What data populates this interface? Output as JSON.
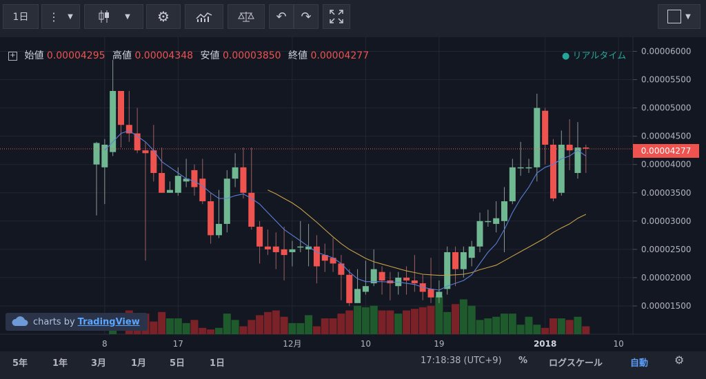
{
  "toolbar": {
    "interval_label": "1日"
  },
  "legend": {
    "open_label": "始値",
    "open_value": "0.00004295",
    "high_label": "高値",
    "high_value": "0.00004348",
    "low_label": "安値",
    "low_value": "0.00003850",
    "close_label": "終値",
    "close_value": "0.00004277",
    "realtime": "リアルタイム"
  },
  "branding": {
    "prefix": "charts by",
    "name": "TradingView"
  },
  "current_price_label": "0.00004277",
  "bottom_bar": {
    "ranges": [
      "5年",
      "1年",
      "3月",
      "1月",
      "5日",
      "1日"
    ],
    "time": "17:18:38 (UTC+9)",
    "percent": "%",
    "log_scale": "ログスケール",
    "auto": "自動"
  },
  "colors": {
    "up": "#6fb892",
    "down": "#ef5350",
    "bg": "#131722",
    "ma_fast": "#5b7fd6",
    "ma_slow": "#c8a04a"
  },
  "chart_data": {
    "type": "candlestick",
    "y_ticks": [
      "0.00006000",
      "0.00005500",
      "0.00005000",
      "0.00004500",
      "0.00004000",
      "0.00003500",
      "0.00003000",
      "0.00002500",
      "0.00002000",
      "0.00001500"
    ],
    "y_tick_values": [
      6.0,
      5.5,
      5.0,
      4.5,
      4.0,
      3.5,
      3.0,
      2.5,
      2.0,
      1.5
    ],
    "y_unit_scale": "1e-5",
    "x_ticks": [
      {
        "label": "8",
        "i": 1
      },
      {
        "label": "17",
        "i": 10
      },
      {
        "label": "12月",
        "i": 24
      },
      {
        "label": "10",
        "i": 33
      },
      {
        "label": "19",
        "i": 42
      },
      {
        "label": "2018",
        "i": 55
      },
      {
        "label": "10",
        "i": 64
      }
    ],
    "candles": [
      [
        4.0,
        4.38,
        4.4,
        3.1
      ],
      [
        3.95,
        4.35,
        4.45,
        3.3
      ],
      [
        4.22,
        5.3,
        5.85,
        4.15
      ],
      [
        5.3,
        4.7,
        5.3,
        4.3
      ],
      [
        4.7,
        4.55,
        5.3,
        4.4
      ],
      [
        4.55,
        4.25,
        5.0,
        4.2
      ],
      [
        4.25,
        4.2,
        4.4,
        2.3
      ],
      [
        4.25,
        3.85,
        4.7,
        3.7
      ],
      [
        3.85,
        3.5,
        4.3,
        3.5
      ],
      [
        3.5,
        3.55,
        3.7,
        3.5
      ],
      [
        3.5,
        3.8,
        3.95,
        3.45
      ],
      [
        3.7,
        3.75,
        4.1,
        3.6
      ],
      [
        3.9,
        3.6,
        4.0,
        3.45
      ],
      [
        3.75,
        3.35,
        4.1,
        3.3
      ],
      [
        3.35,
        2.75,
        3.5,
        2.6
      ],
      [
        2.75,
        2.95,
        3.55,
        2.7
      ],
      [
        2.95,
        3.75,
        3.9,
        2.8
      ],
      [
        3.75,
        3.95,
        4.2,
        3.6
      ],
      [
        3.95,
        3.5,
        4.3,
        3.4
      ],
      [
        3.5,
        2.9,
        4.3,
        2.85
      ],
      [
        2.9,
        2.55,
        3.0,
        2.25
      ],
      [
        2.55,
        2.5,
        2.85,
        2.4
      ],
      [
        2.55,
        2.45,
        2.8,
        2.15
      ],
      [
        2.5,
        2.4,
        2.9,
        1.95
      ],
      [
        2.45,
        2.5,
        2.65,
        2.2
      ],
      [
        2.55,
        2.55,
        3.0,
        2.45
      ],
      [
        2.5,
        2.55,
        2.95,
        2.2
      ],
      [
        2.55,
        2.2,
        2.75,
        1.9
      ],
      [
        2.4,
        2.3,
        2.6,
        2.1
      ],
      [
        2.35,
        2.25,
        2.7,
        2.1
      ],
      [
        2.25,
        2.05,
        2.4,
        1.6
      ],
      [
        2.05,
        1.55,
        2.15,
        1.5
      ],
      [
        1.55,
        1.8,
        2.15,
        1.55
      ],
      [
        1.75,
        1.85,
        2.3,
        1.7
      ],
      [
        1.9,
        2.15,
        2.5,
        1.85
      ],
      [
        2.1,
        1.95,
        2.2,
        1.7
      ],
      [
        1.95,
        1.9,
        2.1,
        1.6
      ],
      [
        1.85,
        2.0,
        2.1,
        1.7
      ],
      [
        2.0,
        1.95,
        2.2,
        1.7
      ],
      [
        1.95,
        1.9,
        2.4,
        1.75
      ],
      [
        1.9,
        1.75,
        2.05,
        1.6
      ],
      [
        1.8,
        1.65,
        2.35,
        1.55
      ],
      [
        1.65,
        1.75,
        1.95,
        1.55
      ],
      [
        1.8,
        2.45,
        2.55,
        1.7
      ],
      [
        2.45,
        2.15,
        2.55,
        1.85
      ],
      [
        2.15,
        2.45,
        2.55,
        2.0
      ],
      [
        2.35,
        2.55,
        2.65,
        2.2
      ],
      [
        2.55,
        3.0,
        3.15,
        2.45
      ],
      [
        3.0,
        3.0,
        3.2,
        2.9
      ],
      [
        2.95,
        3.05,
        3.35,
        2.8
      ],
      [
        3.0,
        3.35,
        3.6,
        2.45
      ],
      [
        3.35,
        3.95,
        4.1,
        3.3
      ],
      [
        3.95,
        3.95,
        4.4,
        3.8
      ],
      [
        3.95,
        3.95,
        4.1,
        3.85
      ],
      [
        3.95,
        5.0,
        5.25,
        3.7
      ],
      [
        4.95,
        4.35,
        5.0,
        4.0
      ],
      [
        4.35,
        3.4,
        4.45,
        3.35
      ],
      [
        3.5,
        4.35,
        4.6,
        3.45
      ],
      [
        4.35,
        4.25,
        4.8,
        3.9
      ],
      [
        3.85,
        4.3,
        4.75,
        3.75
      ],
      [
        4.3,
        4.28,
        4.35,
        3.85
      ]
    ],
    "volumes": [
      0,
      0,
      5,
      0,
      15,
      9,
      13,
      8,
      14,
      10,
      10,
      7,
      9,
      4,
      3,
      4,
      13,
      9,
      5,
      9,
      12,
      14,
      15,
      11,
      7,
      7,
      12,
      5,
      10,
      10,
      13,
      15,
      18,
      17,
      18,
      15,
      15,
      13,
      15,
      16,
      17,
      18,
      24,
      14,
      19,
      22,
      18,
      9,
      10,
      11,
      13,
      13,
      6,
      11,
      6,
      4,
      10,
      10,
      9,
      11,
      5
    ],
    "ma_fast": [
      null,
      4.25,
      4.4,
      4.55,
      4.6,
      4.5,
      4.4,
      4.25,
      4.05,
      3.95,
      3.85,
      3.75,
      3.7,
      3.62,
      3.5,
      3.4,
      3.4,
      3.45,
      3.48,
      3.4,
      3.3,
      3.15,
      3.0,
      2.85,
      2.75,
      2.65,
      2.55,
      2.45,
      2.4,
      2.35,
      2.25,
      2.1,
      1.98,
      1.93,
      1.93,
      1.93,
      1.92,
      1.92,
      1.9,
      1.88,
      1.83,
      1.8,
      1.78,
      1.85,
      1.9,
      1.95,
      2.05,
      2.25,
      2.45,
      2.6,
      2.85,
      3.15,
      3.4,
      3.6,
      3.85,
      3.95,
      4.0,
      4.1,
      4.15,
      4.25,
      4.15
    ],
    "ma_slow": [
      null,
      null,
      null,
      null,
      null,
      null,
      null,
      null,
      null,
      null,
      null,
      null,
      null,
      null,
      null,
      null,
      null,
      null,
      null,
      null,
      null,
      3.55,
      3.48,
      3.4,
      3.32,
      3.22,
      3.1,
      2.98,
      2.85,
      2.72,
      2.6,
      2.5,
      2.42,
      2.34,
      2.28,
      2.24,
      2.2,
      2.16,
      2.12,
      2.09,
      2.06,
      2.05,
      2.04,
      2.04,
      2.05,
      2.06,
      2.09,
      2.14,
      2.18,
      2.22,
      2.3,
      2.38,
      2.46,
      2.54,
      2.62,
      2.7,
      2.8,
      2.88,
      2.95,
      3.05,
      3.12
    ]
  }
}
